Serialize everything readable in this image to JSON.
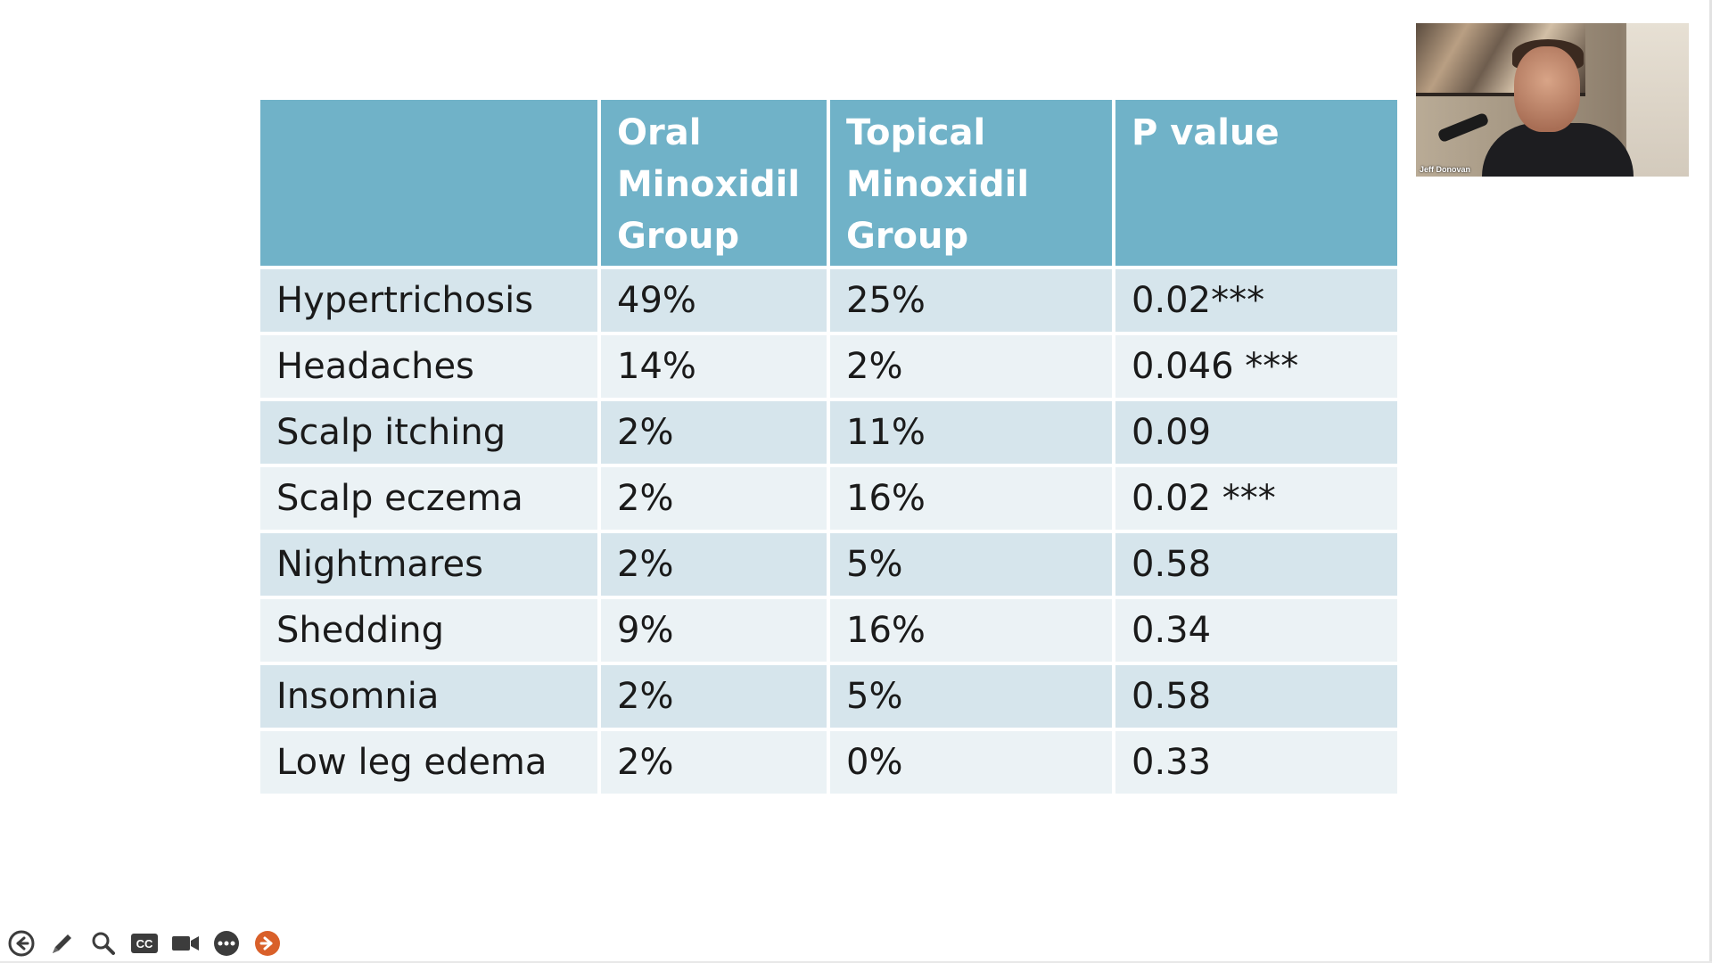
{
  "table": {
    "headers": [
      "",
      "Oral\nMinoxidil\nGroup",
      "Topical\nMinoxidil\nGroup",
      "P value"
    ],
    "rows": [
      [
        "Hypertrichosis",
        "49%",
        "25%",
        "0.02***"
      ],
      [
        "Headaches",
        "14%",
        "2%",
        "0.046 ***"
      ],
      [
        "Scalp itching",
        "2%",
        "11%",
        "0.09"
      ],
      [
        "Scalp eczema",
        "2%",
        "16%",
        "0.02 ***"
      ],
      [
        "Nightmares",
        "2%",
        "5%",
        "0.58"
      ],
      [
        "Shedding",
        "9%",
        "16%",
        "0.34"
      ],
      [
        "Insomnia",
        "2%",
        "5%",
        "0.58"
      ],
      [
        "Low leg edema",
        "2%",
        "0%",
        "0.33"
      ]
    ]
  },
  "webcam": {
    "participant_name": "Jeff Donovan"
  },
  "controls": [
    {
      "name": "previous-slide",
      "icon": "arrow-left-circle-icon"
    },
    {
      "name": "pen",
      "icon": "pencil-icon"
    },
    {
      "name": "zoom",
      "icon": "magnifier-icon"
    },
    {
      "name": "captions",
      "icon": "cc-icon",
      "label": "CC"
    },
    {
      "name": "camera",
      "icon": "video-camera-icon"
    },
    {
      "name": "more-options",
      "icon": "ellipsis-icon"
    },
    {
      "name": "next-slide",
      "icon": "arrow-right-circle-icon"
    }
  ],
  "colors": {
    "header_bg": "#70b2c8",
    "row_dark": "#d6e5ec",
    "row_light": "#ebf2f5",
    "control_gray": "#3c3c3c",
    "next_accent": "#d9602a"
  }
}
